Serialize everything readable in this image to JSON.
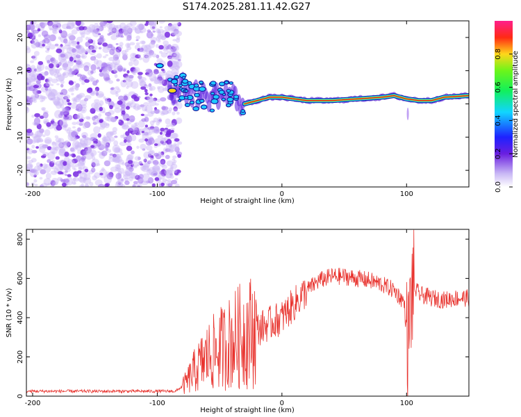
{
  "title": "S174.2025.281.11.42.G27",
  "colors": {
    "snr_line": "#e8322d",
    "noise": "#7a2ee0",
    "trace_core": "#e02020",
    "trace_edge": "#1ec8ff"
  },
  "chart_data": [
    {
      "type": "heatmap",
      "name": "spectrogram",
      "xlabel": "Height of straight line (km)",
      "ylabel": "Frequency (Hz)",
      "xlim": [
        -205,
        150
      ],
      "ylim": [
        -25,
        25
      ],
      "x_ticks": [
        -200,
        -100,
        0,
        100
      ],
      "y_ticks": [
        20,
        10,
        0,
        -10,
        -20
      ],
      "colorbar": {
        "label": "Normalized spectral amplitude",
        "range": [
          0,
          1
        ],
        "ticks": [
          "0.0",
          "0.2",
          "0.4",
          "0.6",
          "0.8"
        ],
        "tick_values": [
          0.0,
          0.2,
          0.4,
          0.6,
          0.8
        ]
      },
      "trace_centerline": {
        "x": [
          -90,
          -80,
          -70,
          -60,
          -50,
          -40,
          -30,
          -20,
          -10,
          0,
          20,
          40,
          60,
          80,
          90,
          100,
          110,
          120,
          130,
          150
        ],
        "y": [
          4,
          5,
          3,
          2,
          3,
          2,
          0,
          1,
          2,
          2,
          1,
          1,
          1.5,
          2,
          2.5,
          1.5,
          1,
          1,
          2,
          2.5
        ]
      },
      "noise_region_x": [
        -205,
        -88
      ]
    },
    {
      "type": "line",
      "name": "snr",
      "xlabel": "Height of straight line (km)",
      "ylabel": "SNR (10 * v/v)",
      "xlim": [
        -205,
        150
      ],
      "ylim": [
        0,
        850
      ],
      "x_ticks": [
        -200,
        -100,
        0,
        100
      ],
      "y_ticks": [
        800,
        600,
        400,
        200,
        0
      ],
      "envelope": {
        "x": [
          -205,
          -150,
          -100,
          -85,
          -78,
          -70,
          -60,
          -50,
          -40,
          -30,
          -20,
          -10,
          0,
          10,
          20,
          30,
          40,
          50,
          60,
          70,
          80,
          90,
          98,
          101,
          103,
          105,
          110,
          120,
          130,
          140,
          150
        ],
        "y": [
          25,
          25,
          25,
          25,
          60,
          130,
          200,
          240,
          280,
          320,
          340,
          370,
          400,
          470,
          540,
          590,
          610,
          610,
          600,
          590,
          570,
          540,
          480,
          260,
          420,
          560,
          520,
          500,
          490,
          500,
          500
        ]
      }
    }
  ]
}
